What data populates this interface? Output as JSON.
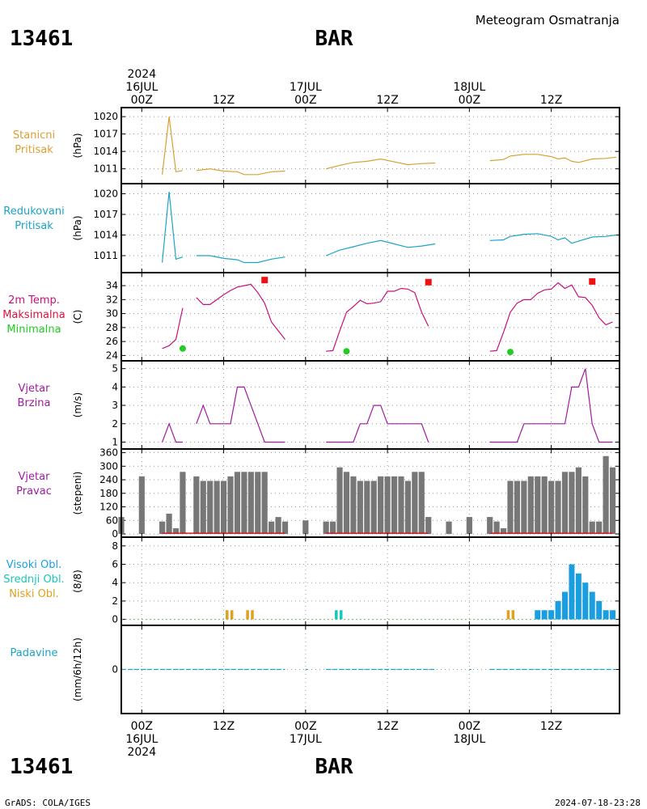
{
  "header": {
    "station_id": "13461",
    "station_name": "BAR",
    "title": "Meteogram Osmatranja"
  },
  "footer": {
    "credit": "GrADS: COLA/IGES",
    "timestamp": "2024-07-18-23:28"
  },
  "time_axis": {
    "top_labels": [
      {
        "t": 0,
        "lines": [
          "2024",
          "16JUL",
          "00Z"
        ]
      },
      {
        "t": 12,
        "lines": [
          "12Z"
        ]
      },
      {
        "t": 24,
        "lines": [
          "17JUL",
          "00Z"
        ]
      },
      {
        "t": 36,
        "lines": [
          "12Z"
        ]
      },
      {
        "t": 48,
        "lines": [
          "18JUL",
          "00Z"
        ]
      },
      {
        "t": 60,
        "lines": [
          "12Z"
        ]
      }
    ],
    "bottom_labels": [
      {
        "t": 0,
        "lines": [
          "00Z",
          "16JUL",
          "2024"
        ]
      },
      {
        "t": 12,
        "lines": [
          "12Z"
        ]
      },
      {
        "t": 24,
        "lines": [
          "00Z",
          "17JUL"
        ]
      },
      {
        "t": 36,
        "lines": [
          "12Z"
        ]
      },
      {
        "t": 48,
        "lines": [
          "00Z",
          "18JUL"
        ]
      },
      {
        "t": 60,
        "lines": [
          "12Z"
        ]
      }
    ],
    "range_hours": [
      -3,
      70
    ]
  },
  "colors": {
    "pressure": "#d9a032",
    "reduced": "#1aa4c8",
    "tmax_line": "#c8107a",
    "tmax_label": "#e0103c",
    "tmin": "#22cc22",
    "tmax_marker": "#ee1111",
    "wind": "#a01aa0",
    "dir_bar": "#777777",
    "dir_base": "#cc2222",
    "cloud_high": "#1a9ee0",
    "cloud_mid": "#18c8b8",
    "cloud_low": "#e0a020",
    "precip": "#1aa4c8"
  },
  "chart_data": [
    {
      "type": "line",
      "panel": "station_pressure",
      "label_lines": [
        "Stanicni",
        "Pritisak"
      ],
      "ylabel": "(hPa)",
      "ylim": [
        1009,
        1021
      ],
      "yticks": [
        1011,
        1014,
        1017,
        1020
      ],
      "segments": [
        [
          [
            3,
            1010
          ],
          [
            4,
            1020
          ],
          [
            5,
            1010.5
          ],
          [
            6,
            1010.7
          ]
        ],
        [
          [
            8,
            1010.7
          ],
          [
            10,
            1011
          ],
          [
            12,
            1010.6
          ],
          [
            14,
            1010.5
          ],
          [
            15,
            1010
          ],
          [
            17,
            1010
          ],
          [
            19,
            1010.5
          ],
          [
            21,
            1010.6
          ]
        ],
        [
          [
            27,
            1011
          ],
          [
            29,
            1011.6
          ],
          [
            31,
            1012.1
          ],
          [
            33,
            1012.3
          ],
          [
            35,
            1012.7
          ],
          [
            37,
            1012.2
          ],
          [
            39,
            1011.7
          ],
          [
            41,
            1011.9
          ],
          [
            43,
            1012
          ]
        ],
        [
          [
            51,
            1012.4
          ],
          [
            53,
            1012.6
          ],
          [
            54,
            1013.2
          ],
          [
            56,
            1013.5
          ],
          [
            58,
            1013.5
          ],
          [
            60,
            1013.1
          ],
          [
            61,
            1012.7
          ],
          [
            62,
            1012.9
          ],
          [
            63,
            1012.3
          ],
          [
            64,
            1012.1
          ],
          [
            66,
            1012.7
          ],
          [
            68,
            1012.8
          ],
          [
            69.5,
            1013
          ]
        ]
      ]
    },
    {
      "type": "line",
      "panel": "reduced_pressure",
      "label_lines": [
        "Redukovani",
        "Pritisak"
      ],
      "ylabel": "(hPa)",
      "ylim": [
        1009,
        1021
      ],
      "yticks": [
        1011,
        1014,
        1017,
        1020
      ],
      "segments": [
        [
          [
            3,
            1010
          ],
          [
            4,
            1020.3
          ],
          [
            5,
            1010.5
          ],
          [
            6,
            1010.8
          ]
        ],
        [
          [
            8,
            1011
          ],
          [
            10,
            1011
          ],
          [
            12,
            1010.6
          ],
          [
            14,
            1010.4
          ],
          [
            15,
            1010
          ],
          [
            17,
            1010
          ],
          [
            19,
            1010.5
          ],
          [
            21,
            1010.8
          ]
        ],
        [
          [
            27,
            1011
          ],
          [
            29,
            1011.8
          ],
          [
            31,
            1012.3
          ],
          [
            33,
            1012.8
          ],
          [
            35,
            1013.2
          ],
          [
            37,
            1012.7
          ],
          [
            39,
            1012.2
          ],
          [
            41,
            1012.4
          ],
          [
            43,
            1012.7
          ]
        ],
        [
          [
            51,
            1013.2
          ],
          [
            53,
            1013.3
          ],
          [
            54,
            1013.8
          ],
          [
            56,
            1014.1
          ],
          [
            58,
            1014.2
          ],
          [
            60,
            1013.8
          ],
          [
            61,
            1013.3
          ],
          [
            62,
            1013.6
          ],
          [
            63,
            1012.8
          ],
          [
            64,
            1013.1
          ],
          [
            66,
            1013.7
          ],
          [
            68,
            1013.8
          ],
          [
            69.5,
            1014
          ]
        ]
      ]
    },
    {
      "type": "line",
      "panel": "temperature",
      "label_lines": [
        "2m Temp.",
        "Maksimalna",
        "Minimalna"
      ],
      "ylabel": "(C)",
      "ylim": [
        23.7,
        35.4
      ],
      "yticks": [
        24,
        26,
        28,
        30,
        32,
        34
      ],
      "segments": [
        [
          [
            3,
            25
          ],
          [
            4,
            25.4
          ],
          [
            5,
            26.3
          ],
          [
            6,
            30.8
          ]
        ],
        [
          [
            8,
            32.3
          ],
          [
            9,
            31.3
          ],
          [
            10,
            31.3
          ],
          [
            11,
            32
          ],
          [
            12,
            32.7
          ],
          [
            13,
            33.3
          ],
          [
            14,
            33.8
          ],
          [
            15,
            34
          ],
          [
            16,
            34.2
          ],
          [
            17,
            33
          ],
          [
            18,
            31.5
          ],
          [
            19,
            28.8
          ],
          [
            21,
            26.3
          ]
        ],
        [
          [
            27,
            24.6
          ],
          [
            28,
            24.7
          ],
          [
            29,
            27.5
          ],
          [
            30,
            30.2
          ],
          [
            31,
            31
          ],
          [
            32,
            31.9
          ],
          [
            33,
            31.4
          ],
          [
            34,
            31.5
          ],
          [
            35,
            31.7
          ],
          [
            36,
            33.2
          ],
          [
            37,
            33.2
          ],
          [
            38,
            33.6
          ],
          [
            39,
            33.5
          ],
          [
            40,
            33
          ],
          [
            41,
            30.2
          ],
          [
            42,
            28.2
          ]
        ],
        [
          [
            51,
            24.6
          ],
          [
            52,
            24.7
          ],
          [
            53,
            27.3
          ],
          [
            54,
            30.2
          ],
          [
            55,
            31.5
          ],
          [
            56,
            32
          ],
          [
            57,
            32
          ],
          [
            58,
            32.9
          ],
          [
            59,
            33.4
          ],
          [
            60,
            33.5
          ],
          [
            61,
            34.4
          ],
          [
            62,
            33.6
          ],
          [
            63,
            34.1
          ],
          [
            64,
            32.4
          ],
          [
            65,
            32.3
          ],
          [
            66,
            31.2
          ],
          [
            67,
            29.4
          ],
          [
            68,
            28.4
          ],
          [
            69,
            28.8
          ]
        ]
      ],
      "tmax_markers": [
        [
          18,
          34.8
        ],
        [
          42,
          34.5
        ],
        [
          66,
          34.6
        ]
      ],
      "tmin_markers": [
        [
          6,
          25
        ],
        [
          30,
          24.6
        ],
        [
          54,
          24.5
        ]
      ]
    },
    {
      "type": "line",
      "panel": "wind_speed",
      "label_lines": [
        "Vjetar",
        "Brzina"
      ],
      "ylabel": "(m/s)",
      "ylim": [
        0.8,
        5.25
      ],
      "yticks": [
        1,
        2,
        3,
        4,
        5
      ],
      "segments": [
        [
          [
            3,
            1
          ],
          [
            4,
            2
          ],
          [
            5,
            1
          ],
          [
            6,
            1
          ]
        ],
        [
          [
            8,
            2
          ],
          [
            9,
            3
          ],
          [
            10,
            2
          ],
          [
            11,
            2
          ],
          [
            12,
            2
          ],
          [
            13,
            2
          ],
          [
            14,
            4
          ],
          [
            15,
            4
          ],
          [
            16,
            3
          ],
          [
            17,
            2
          ],
          [
            18,
            1
          ],
          [
            19,
            1
          ],
          [
            21,
            1
          ]
        ],
        [
          [
            27,
            1
          ],
          [
            29,
            1
          ],
          [
            31,
            1
          ],
          [
            32,
            2
          ],
          [
            33,
            2
          ],
          [
            34,
            3
          ],
          [
            35,
            3
          ],
          [
            36,
            2
          ],
          [
            37,
            2
          ],
          [
            40,
            2
          ],
          [
            41,
            2
          ],
          [
            42,
            1
          ]
        ],
        [
          [
            51,
            1
          ],
          [
            53,
            1
          ],
          [
            55,
            1
          ],
          [
            56,
            2
          ],
          [
            57,
            2
          ],
          [
            58,
            2
          ],
          [
            61,
            2
          ],
          [
            62,
            2
          ],
          [
            63,
            4
          ],
          [
            64,
            4
          ],
          [
            65,
            5
          ],
          [
            66,
            2
          ],
          [
            67,
            1
          ],
          [
            69,
            1
          ]
        ]
      ]
    },
    {
      "type": "bar",
      "panel": "wind_direction",
      "label_lines": [
        "Vjetar",
        "Pravac"
      ],
      "ylabel": "(stepeni)",
      "ylim": [
        0,
        362
      ],
      "yticks": [
        0,
        60,
        120,
        180,
        240,
        300,
        360
      ],
      "ytick_labels": [
        "0",
        "60",
        "120",
        "180",
        "240",
        "300",
        "360"
      ],
      "bars": [
        [
          -3,
          75
        ],
        [
          0,
          255
        ],
        [
          3,
          55
        ],
        [
          4,
          90
        ],
        [
          5,
          25
        ],
        [
          6,
          275
        ],
        [
          8,
          255
        ],
        [
          9,
          235
        ],
        [
          10,
          235
        ],
        [
          11,
          235
        ],
        [
          12,
          235
        ],
        [
          13,
          255
        ],
        [
          14,
          275
        ],
        [
          15,
          275
        ],
        [
          16,
          275
        ],
        [
          17,
          275
        ],
        [
          18,
          275
        ],
        [
          19,
          55
        ],
        [
          20,
          75
        ],
        [
          21,
          55
        ],
        [
          24,
          60
        ],
        [
          27,
          55
        ],
        [
          28,
          55
        ],
        [
          29,
          295
        ],
        [
          30,
          275
        ],
        [
          31,
          255
        ],
        [
          32,
          235
        ],
        [
          33,
          235
        ],
        [
          34,
          235
        ],
        [
          35,
          255
        ],
        [
          36,
          255
        ],
        [
          37,
          255
        ],
        [
          38,
          255
        ],
        [
          39,
          235
        ],
        [
          40,
          275
        ],
        [
          41,
          275
        ],
        [
          42,
          75
        ],
        [
          45,
          55
        ],
        [
          48,
          75
        ],
        [
          51,
          75
        ],
        [
          52,
          55
        ],
        [
          53,
          25
        ],
        [
          54,
          235
        ],
        [
          55,
          235
        ],
        [
          56,
          235
        ],
        [
          57,
          255
        ],
        [
          58,
          255
        ],
        [
          59,
          255
        ],
        [
          60,
          235
        ],
        [
          61,
          235
        ],
        [
          62,
          275
        ],
        [
          63,
          275
        ],
        [
          64,
          295
        ],
        [
          65,
          255
        ],
        [
          66,
          55
        ],
        [
          67,
          55
        ],
        [
          68,
          345
        ],
        [
          69,
          295
        ]
      ]
    },
    {
      "type": "bar",
      "panel": "clouds",
      "label_lines": [
        "Visoki Obl.",
        "Srednji Obl.",
        "Niski Obl."
      ],
      "ylabel": "(8/8)",
      "ylim": [
        -0.3,
        8.6
      ],
      "yticks": [
        0,
        2,
        4,
        6,
        8
      ],
      "ytick_labels": [
        "0",
        "2",
        "4",
        "6",
        "8"
      ],
      "series": [
        {
          "name": "Niski Obl.",
          "bars": [
            [
              12.5,
              1
            ],
            [
              13.2,
              1
            ],
            [
              15.5,
              1
            ],
            [
              16.2,
              1
            ],
            [
              53.7,
              1
            ],
            [
              54.4,
              1
            ]
          ]
        },
        {
          "name": "Srednji Obl.",
          "bars": [
            [
              28.5,
              1
            ],
            [
              29.2,
              1
            ]
          ]
        },
        {
          "name": "Visoki Obl.",
          "bars": [
            [
              58,
              1
            ],
            [
              59,
              1
            ],
            [
              60,
              1
            ],
            [
              61,
              2
            ],
            [
              62,
              3
            ],
            [
              63,
              6
            ],
            [
              64,
              5
            ],
            [
              65,
              4
            ],
            [
              66,
              3
            ],
            [
              67,
              2
            ],
            [
              68,
              1
            ],
            [
              69,
              1
            ]
          ]
        }
      ]
    },
    {
      "type": "line",
      "panel": "precipitation",
      "label_lines": [
        "Padavine"
      ],
      "ylabel": "(mm/6h/12h)",
      "ylim": [
        -1,
        1
      ],
      "yticks": [
        0
      ],
      "ytick_labels": [
        "0"
      ],
      "segments": [
        [
          [
            -3,
            0
          ],
          [
            21,
            0
          ]
        ],
        [
          [
            24,
            0
          ],
          [
            24.3,
            0
          ]
        ],
        [
          [
            27,
            0
          ],
          [
            43,
            0
          ]
        ],
        [
          [
            48,
            0
          ],
          [
            48.3,
            0
          ]
        ],
        [
          [
            51,
            0
          ],
          [
            69.5,
            0
          ]
        ]
      ]
    }
  ]
}
